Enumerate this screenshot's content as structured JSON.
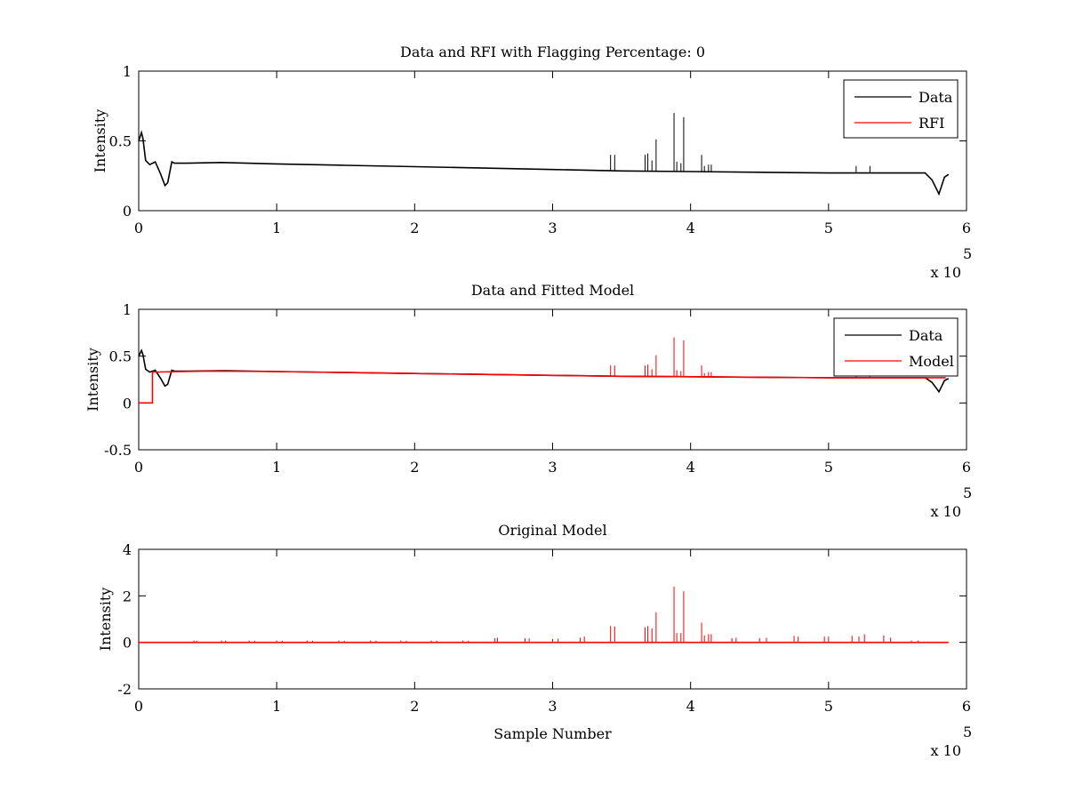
{
  "figure": {
    "background": "#ffffff"
  },
  "chart_data": [
    {
      "type": "line",
      "title": "Data and RFI with Flagging Percentage: 0",
      "xlabel": "",
      "ylabel": "Intensity",
      "xlim": [
        0,
        600000
      ],
      "ylim": [
        0,
        1
      ],
      "x_ticks": [
        "0",
        "1",
        "2",
        "3",
        "4",
        "5",
        "6"
      ],
      "y_ticks": [
        "0",
        "0.5",
        "1"
      ],
      "x_multiplier": {
        "base": "x 10",
        "exponent": "5"
      },
      "legend": {
        "placement": "top-right",
        "entries": [
          "Data",
          "RFI"
        ]
      },
      "series": [
        {
          "name": "Data",
          "color": "#000000",
          "x": [
            0,
            2000,
            3000,
            5000,
            8000,
            12000,
            16000,
            19000,
            21000,
            24000,
            26000,
            35000,
            60000,
            100000,
            150000,
            200000,
            250000,
            300000,
            350000,
            400000,
            450000,
            500000,
            550000,
            570000,
            575000,
            580000,
            584000,
            587000
          ],
          "y": [
            0.5,
            0.56,
            0.52,
            0.36,
            0.33,
            0.35,
            0.26,
            0.18,
            0.2,
            0.35,
            0.34,
            0.34,
            0.345,
            0.335,
            0.325,
            0.315,
            0.305,
            0.295,
            0.285,
            0.28,
            0.275,
            0.27,
            0.27,
            0.27,
            0.22,
            0.12,
            0.24,
            0.26
          ],
          "spikes": [
            [
              342000,
              0.4
            ],
            [
              345000,
              0.4
            ],
            [
              367000,
              0.4
            ],
            [
              369000,
              0.41
            ],
            [
              372000,
              0.36
            ],
            [
              375000,
              0.51
            ],
            [
              388000,
              0.7
            ],
            [
              390000,
              0.35
            ],
            [
              393000,
              0.34
            ],
            [
              395000,
              0.67
            ],
            [
              408000,
              0.4
            ],
            [
              410000,
              0.32
            ],
            [
              413000,
              0.33
            ],
            [
              415000,
              0.33
            ],
            [
              520000,
              0.32
            ],
            [
              530000,
              0.32
            ]
          ]
        },
        {
          "name": "RFI",
          "color": "#ff0000",
          "x": [],
          "y": []
        }
      ]
    },
    {
      "type": "line",
      "title": "Data and Fitted Model",
      "xlabel": "",
      "ylabel": "Intensity",
      "xlim": [
        0,
        600000
      ],
      "ylim": [
        -0.5,
        1
      ],
      "x_ticks": [
        "0",
        "1",
        "2",
        "3",
        "4",
        "5",
        "6"
      ],
      "y_ticks": [
        "-0.5",
        "0",
        "0.5",
        "1"
      ],
      "x_multiplier": {
        "base": "x 10",
        "exponent": "5"
      },
      "legend": {
        "placement": "top-right",
        "entries": [
          "Data",
          "Model"
        ]
      },
      "series": [
        {
          "name": "Data",
          "color": "#000000",
          "x": [
            0,
            2000,
            3000,
            5000,
            8000,
            12000,
            16000,
            19000,
            21000,
            24000,
            26000,
            35000,
            60000,
            100000,
            150000,
            200000,
            250000,
            300000,
            350000,
            400000,
            450000,
            500000,
            550000,
            570000,
            575000,
            580000,
            584000,
            587000
          ],
          "y": [
            0.5,
            0.56,
            0.52,
            0.36,
            0.33,
            0.35,
            0.26,
            0.18,
            0.2,
            0.35,
            0.34,
            0.34,
            0.345,
            0.335,
            0.325,
            0.315,
            0.305,
            0.295,
            0.285,
            0.28,
            0.275,
            0.27,
            0.27,
            0.27,
            0.22,
            0.12,
            0.24,
            0.26
          ],
          "spikes": []
        },
        {
          "name": "Model",
          "color": "#ff0000",
          "x": [
            0,
            10000,
            10001,
            50000,
            100000,
            150000,
            200000,
            250000,
            300000,
            350000,
            400000,
            450000,
            500000,
            550000,
            585000
          ],
          "y": [
            0,
            0,
            0.33,
            0.34,
            0.335,
            0.325,
            0.315,
            0.305,
            0.295,
            0.285,
            0.28,
            0.275,
            0.27,
            0.27,
            0.27
          ],
          "spikes": [
            [
              342000,
              0.4
            ],
            [
              345000,
              0.4
            ],
            [
              367000,
              0.4
            ],
            [
              369000,
              0.41
            ],
            [
              372000,
              0.36
            ],
            [
              375000,
              0.51
            ],
            [
              388000,
              0.7
            ],
            [
              390000,
              0.35
            ],
            [
              393000,
              0.34
            ],
            [
              395000,
              0.67
            ],
            [
              408000,
              0.4
            ],
            [
              410000,
              0.32
            ],
            [
              413000,
              0.33
            ],
            [
              415000,
              0.33
            ],
            [
              520000,
              0.32
            ],
            [
              530000,
              0.32
            ]
          ]
        }
      ]
    },
    {
      "type": "line",
      "title": "Original Model",
      "xlabel": "Sample Number",
      "ylabel": "Intensity",
      "xlim": [
        0,
        600000
      ],
      "ylim": [
        -2,
        4
      ],
      "x_ticks": [
        "0",
        "1",
        "2",
        "3",
        "4",
        "5",
        "6"
      ],
      "y_ticks": [
        "-2",
        "0",
        "2",
        "4"
      ],
      "x_multiplier": {
        "base": "x 10",
        "exponent": "5"
      },
      "legend": null,
      "series": [
        {
          "name": "",
          "color": "#ff0000",
          "x": [
            0,
            587000
          ],
          "y": [
            0,
            0
          ],
          "spikes": [
            [
              40000,
              0.08
            ],
            [
              42000,
              0.07
            ],
            [
              60000,
              0.08
            ],
            [
              63000,
              0.08
            ],
            [
              80000,
              0.08
            ],
            [
              84000,
              0.07
            ],
            [
              100000,
              0.08
            ],
            [
              104000,
              0.07
            ],
            [
              122000,
              0.08
            ],
            [
              126000,
              0.07
            ],
            [
              145000,
              0.08
            ],
            [
              149000,
              0.07
            ],
            [
              168000,
              0.08
            ],
            [
              172000,
              0.07
            ],
            [
              190000,
              0.08
            ],
            [
              194000,
              0.07
            ],
            [
              212000,
              0.08
            ],
            [
              216000,
              0.07
            ],
            [
              235000,
              0.08
            ],
            [
              239000,
              0.07
            ],
            [
              258000,
              0.18
            ],
            [
              260000,
              0.2
            ],
            [
              280000,
              0.18
            ],
            [
              283000,
              0.17
            ],
            [
              300000,
              0.15
            ],
            [
              304000,
              0.16
            ],
            [
              320000,
              0.2
            ],
            [
              323000,
              0.25
            ],
            [
              342000,
              0.7
            ],
            [
              345000,
              0.68
            ],
            [
              367000,
              0.65
            ],
            [
              369000,
              0.7
            ],
            [
              372000,
              0.6
            ],
            [
              375000,
              1.3
            ],
            [
              388000,
              2.4
            ],
            [
              390000,
              0.4
            ],
            [
              393000,
              0.4
            ],
            [
              395000,
              2.2
            ],
            [
              408000,
              0.85
            ],
            [
              410000,
              0.3
            ],
            [
              413000,
              0.35
            ],
            [
              415000,
              0.35
            ],
            [
              430000,
              0.18
            ],
            [
              433000,
              0.2
            ],
            [
              450000,
              0.18
            ],
            [
              455000,
              0.2
            ],
            [
              475000,
              0.28
            ],
            [
              478000,
              0.25
            ],
            [
              497000,
              0.25
            ],
            [
              500000,
              0.25
            ],
            [
              517000,
              0.28
            ],
            [
              522000,
              0.25
            ],
            [
              526000,
              0.35
            ],
            [
              540000,
              0.3
            ],
            [
              545000,
              0.2
            ],
            [
              560000,
              0.08
            ],
            [
              565000,
              0.08
            ]
          ]
        }
      ]
    }
  ]
}
